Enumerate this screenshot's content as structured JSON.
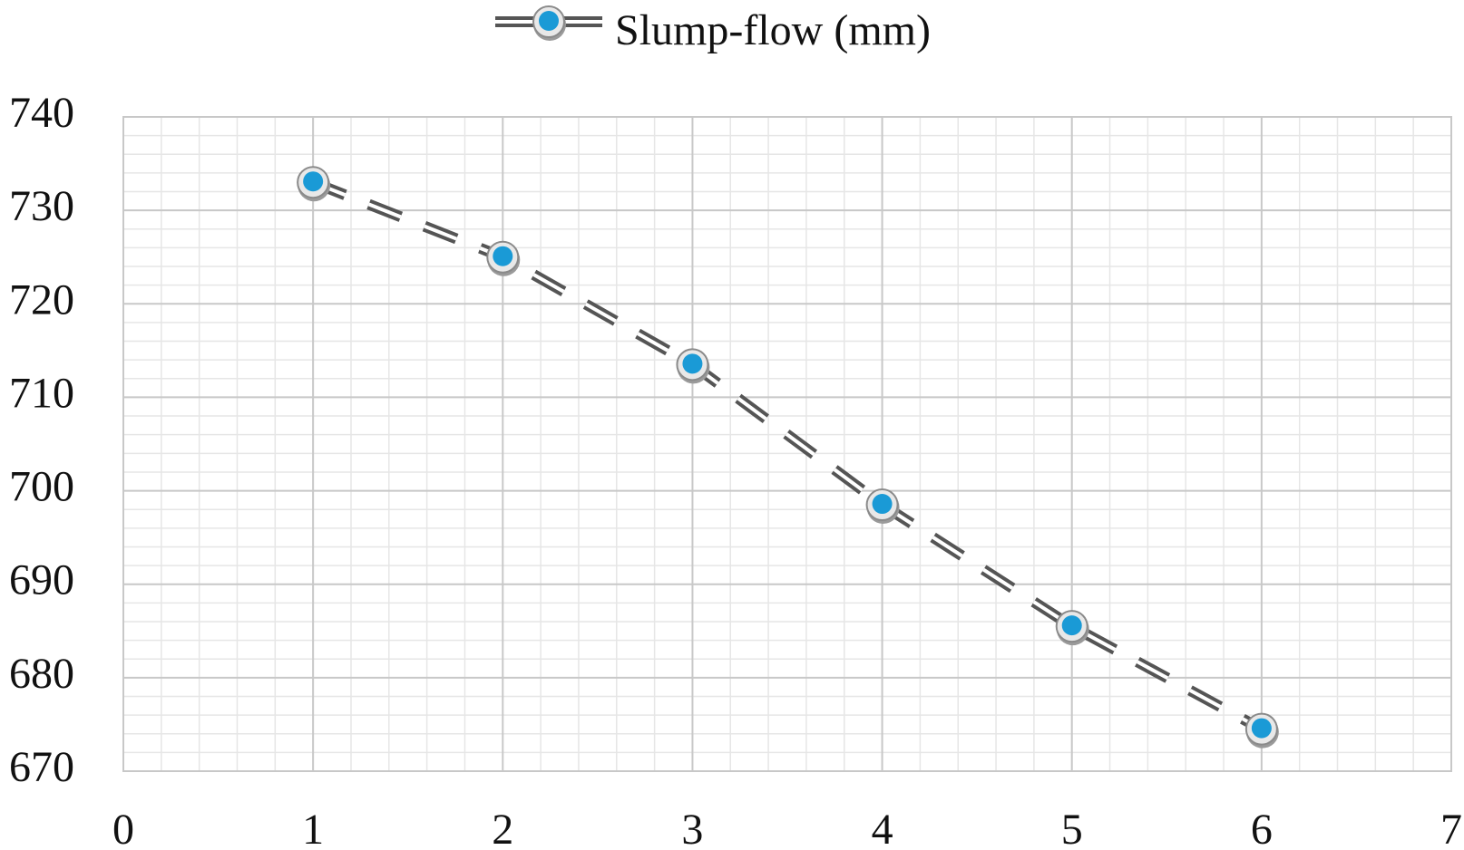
{
  "chart_data": {
    "type": "line",
    "legend_position": "top-center",
    "series": [
      {
        "name": "Slump-flow (mm)",
        "x": [
          1,
          2,
          3,
          4,
          5,
          6
        ],
        "values": [
          733,
          725,
          713.5,
          698.5,
          685.5,
          674.5
        ],
        "color": "#1a9ad6"
      }
    ],
    "xlim": [
      0,
      7
    ],
    "ylim": [
      670,
      740
    ],
    "x_ticks": [
      0,
      1,
      2,
      3,
      4,
      5,
      6,
      7
    ],
    "y_ticks": [
      670,
      680,
      690,
      700,
      710,
      720,
      730,
      740
    ],
    "grid": true,
    "minor_grid": true,
    "line_style": "dashed-double",
    "marker": "circle"
  }
}
